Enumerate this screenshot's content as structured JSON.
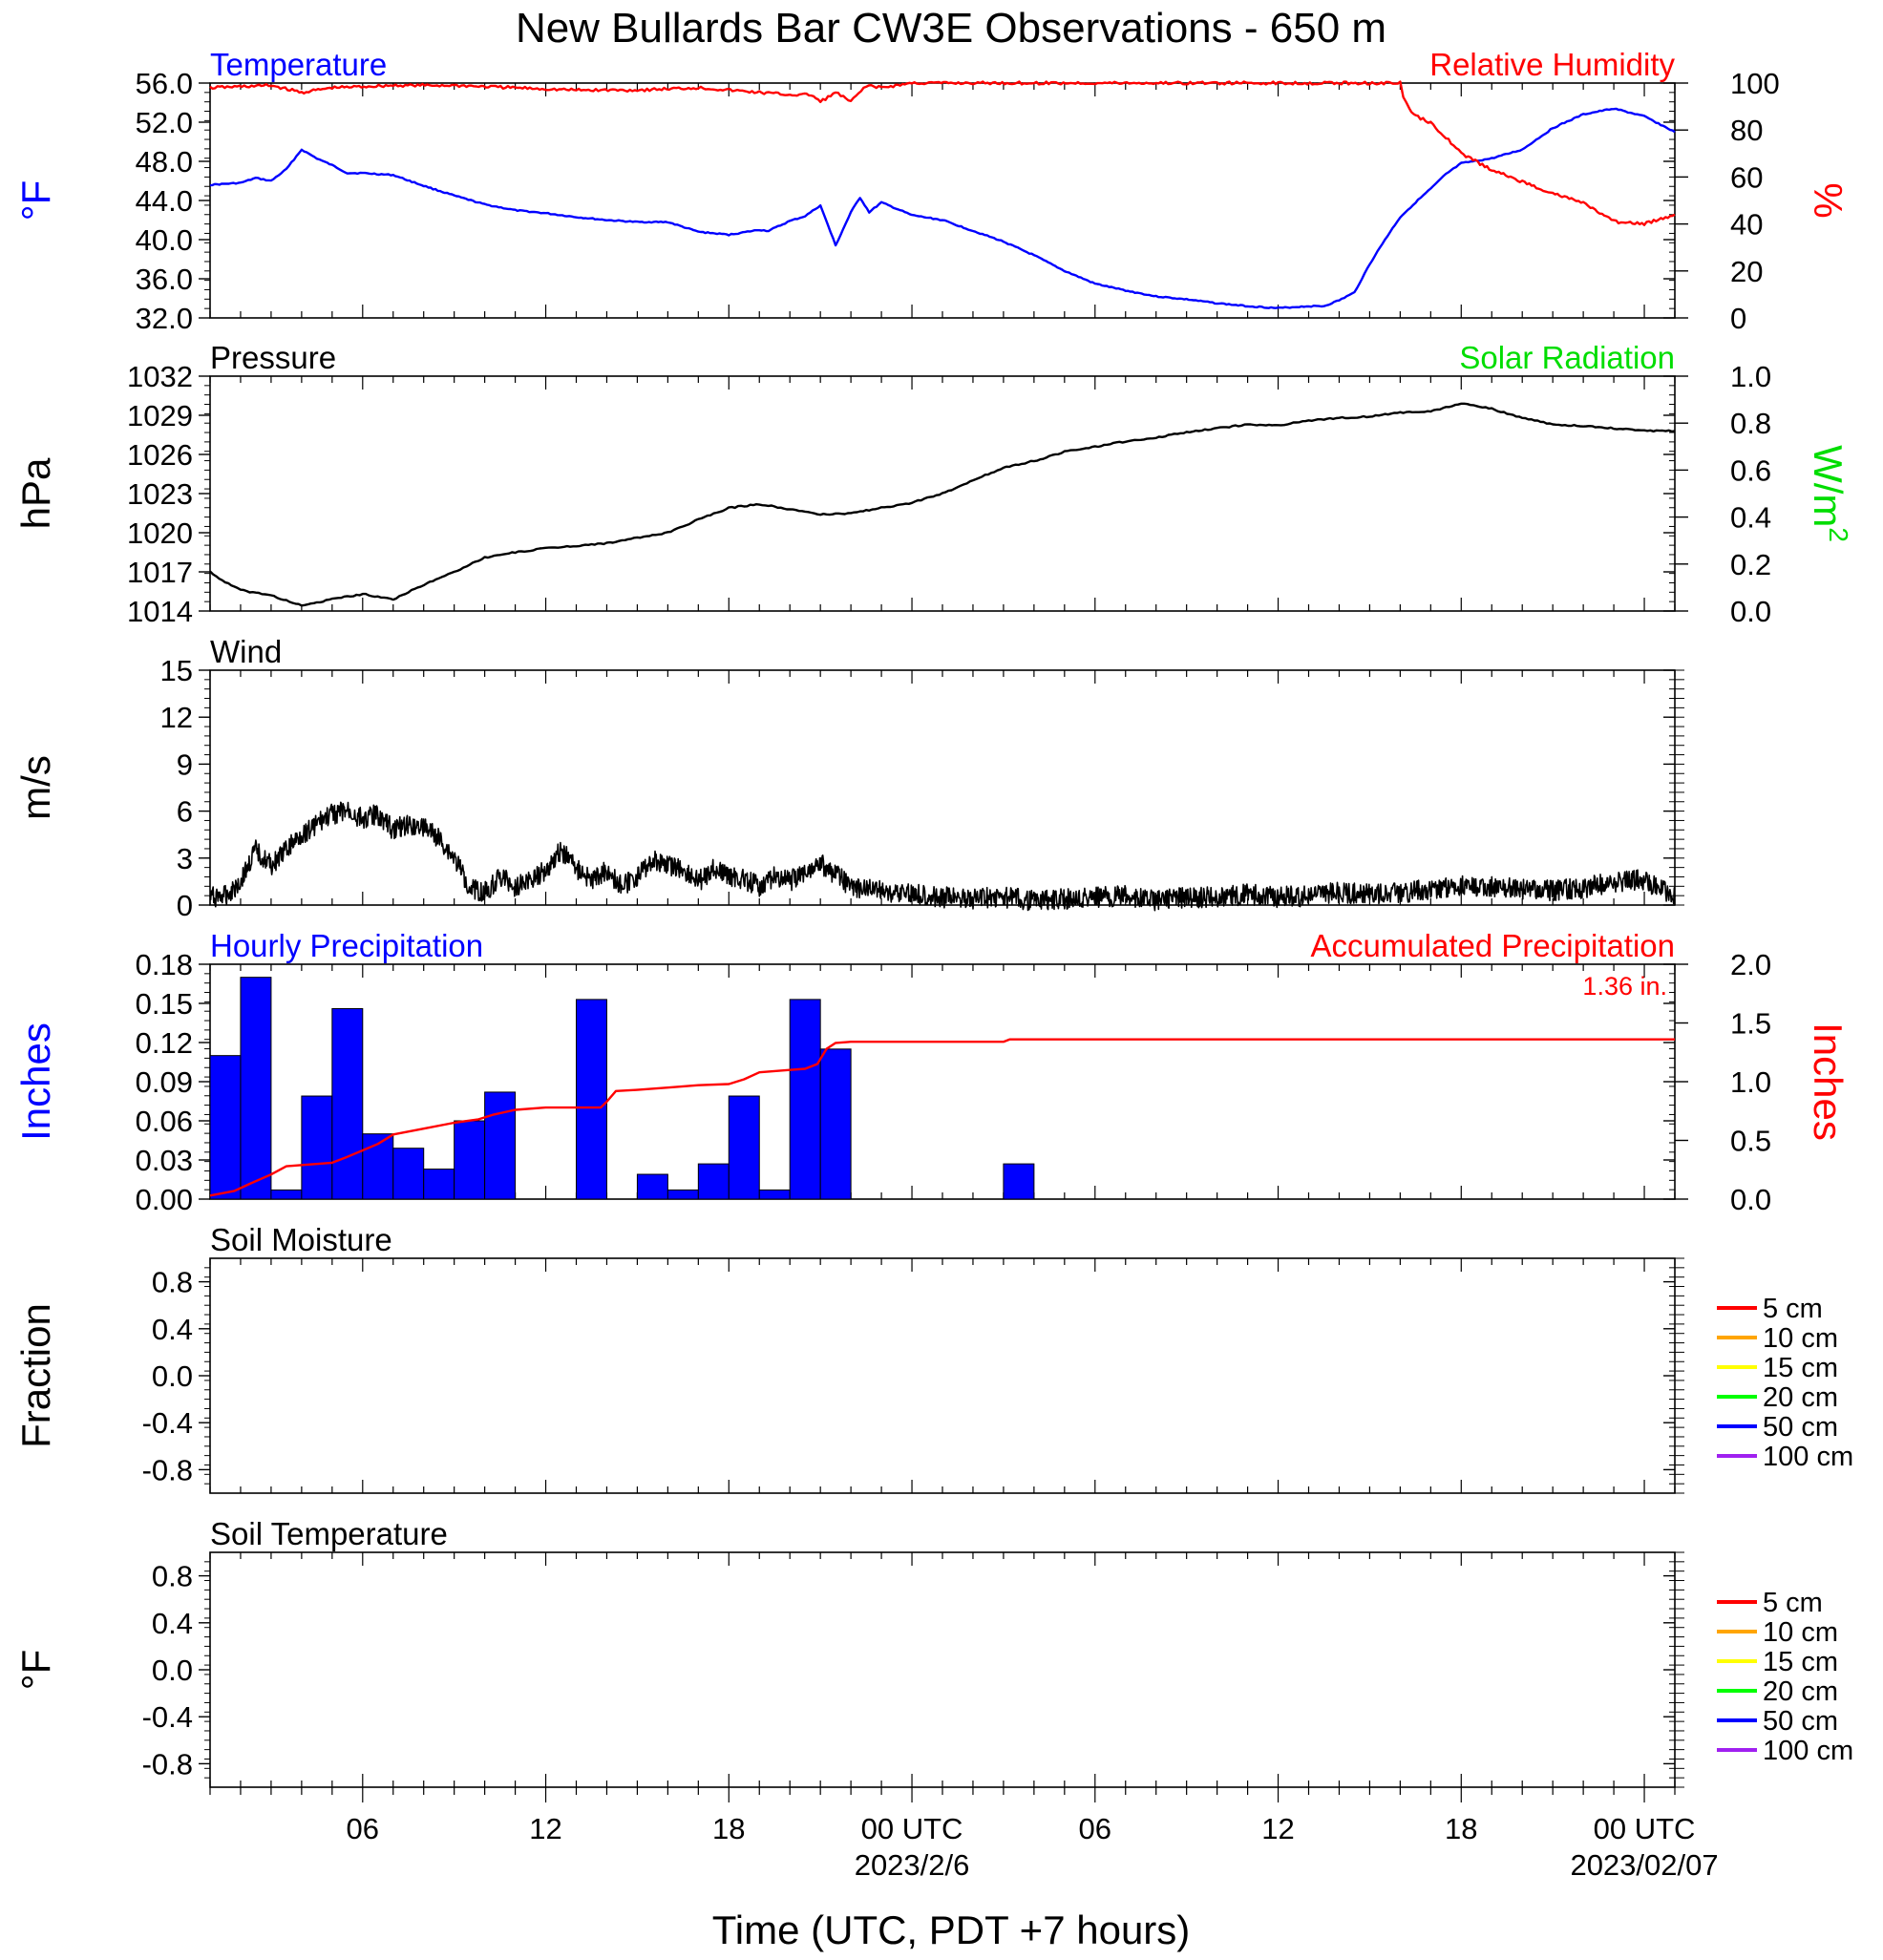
{
  "page": {
    "title": "New Bullards Bar CW3E Observations - 650 m",
    "xlabel": "Time (UTC, PDT +7 hours)",
    "colors": {
      "temperature": "#0000ff",
      "humidity": "#ff0000",
      "pressure": "#000000",
      "solar": "#00dd00",
      "wind": "#000000",
      "wind_barb": "#ff0000",
      "precip_bars": "#0000ff",
      "precip_accum": "#ff0000"
    }
  },
  "time_axis": {
    "start_hour": 0,
    "end_hour": 48,
    "tick_labels": [
      {
        "hour": 5,
        "label": "06",
        "date": ""
      },
      {
        "hour": 11,
        "label": "12",
        "date": ""
      },
      {
        "hour": 17,
        "label": "18",
        "date": ""
      },
      {
        "hour": 23,
        "label": "00 UTC",
        "date": "2023/2/6"
      },
      {
        "hour": 29,
        "label": "06",
        "date": ""
      },
      {
        "hour": 35,
        "label": "12",
        "date": ""
      },
      {
        "hour": 41,
        "label": "18",
        "date": ""
      },
      {
        "hour": 47,
        "label": "00 UTC",
        "date": "2023/02/07"
      }
    ]
  },
  "chart_data": [
    {
      "id": "temp_rh",
      "type": "line",
      "title_left": "Temperature",
      "title_right": "Relative Humidity",
      "ylabel_left": "°F",
      "ylabel_right": "%",
      "ylim_left": [
        32,
        56
      ],
      "yticks_left": [
        "32.0",
        "36.0",
        "40.0",
        "44.0",
        "48.0",
        "52.0",
        "56.0"
      ],
      "ylim_right": [
        0,
        100
      ],
      "yticks_right": [
        "0",
        "20",
        "40",
        "60",
        "80",
        "100"
      ],
      "series": [
        {
          "name": "Temperature",
          "axis": "left",
          "color": "#0000ff",
          "x": [
            0,
            1,
            1.5,
            2,
            2.5,
            3,
            3.5,
            4,
            4.5,
            5,
            6,
            7,
            8,
            9,
            10,
            11,
            12,
            13,
            14,
            15,
            16,
            17,
            18,
            18.3,
            19,
            19.5,
            20,
            20.5,
            21,
            21.3,
            21.6,
            22,
            23,
            24,
            25,
            26,
            27,
            28,
            29,
            30,
            31,
            32,
            33,
            34,
            35,
            36,
            36.5,
            37,
            37.5,
            38,
            38.5,
            39,
            39.5,
            40,
            40.5,
            41,
            42,
            43,
            44,
            45,
            46,
            47,
            48
          ],
          "y": [
            45.6,
            45.8,
            46.3,
            46.0,
            47.2,
            49.2,
            48.3,
            47.6,
            46.8,
            46.8,
            46.6,
            45.5,
            44.5,
            43.6,
            43.0,
            42.7,
            42.3,
            42.0,
            41.8,
            41.8,
            40.8,
            40.5,
            41.0,
            40.9,
            41.9,
            42.4,
            43.5,
            39.4,
            42.8,
            44.3,
            42.8,
            43.8,
            42.5,
            42.0,
            40.9,
            39.8,
            38.4,
            36.8,
            35.5,
            34.8,
            34.2,
            33.9,
            33.5,
            33.2,
            33.0,
            33.2,
            33.2,
            33.8,
            34.6,
            37.5,
            40.0,
            42.3,
            43.8,
            45.2,
            46.7,
            47.8,
            48.3,
            49.2,
            51.4,
            52.8,
            53.4,
            52.6,
            51.0
          ]
        },
        {
          "name": "Relative Humidity",
          "axis": "right",
          "color": "#ff0000",
          "x": [
            0,
            2,
            3,
            4,
            6,
            8,
            10,
            12,
            14,
            16,
            18,
            19,
            19.7,
            20,
            20.5,
            21,
            21.5,
            22,
            23,
            25,
            27,
            29,
            31,
            33,
            35,
            37,
            38,
            39,
            39.1,
            39.3,
            39.5,
            40,
            40.5,
            41,
            42,
            43,
            44,
            45,
            46,
            47,
            48
          ],
          "y": [
            98,
            99,
            96,
            98,
            99,
            99,
            98,
            97,
            97,
            98,
            96,
            95,
            95,
            92,
            96,
            92,
            99,
            98,
            100,
            100,
            100,
            100,
            100,
            100,
            100,
            100,
            100,
            100,
            94,
            89,
            86,
            83,
            77,
            70,
            63,
            58,
            53,
            49,
            41,
            40,
            44
          ]
        }
      ]
    },
    {
      "id": "pressure_solar",
      "type": "line",
      "title_left": "Pressure",
      "title_right": "Solar Radiation",
      "ylabel_left": "hPa",
      "ylabel_right": "W/m2",
      "ylim_left": [
        1014,
        1032
      ],
      "yticks_left": [
        "1014",
        "1017",
        "1020",
        "1023",
        "1026",
        "1029",
        "1032"
      ],
      "ylim_right": [
        0,
        1
      ],
      "yticks_right": [
        "0.0",
        "0.2",
        "0.4",
        "0.6",
        "0.8",
        "1.0"
      ],
      "series": [
        {
          "name": "Pressure",
          "axis": "left",
          "color": "#000000",
          "x": [
            0,
            0.5,
            1,
            2,
            3,
            4,
            5,
            6,
            7,
            8,
            9,
            10,
            11,
            12,
            13,
            14,
            15,
            16,
            17,
            18,
            19,
            20,
            21,
            22,
            23,
            24,
            25,
            26,
            27,
            28,
            29,
            30,
            31,
            32,
            33,
            34,
            35,
            36,
            37,
            38,
            39,
            40,
            41,
            42,
            43,
            44,
            45,
            46,
            47,
            48
          ],
          "y": [
            1017.0,
            1016.2,
            1015.6,
            1015.2,
            1014.4,
            1014.9,
            1015.3,
            1014.9,
            1016.0,
            1017.0,
            1018.1,
            1018.5,
            1018.8,
            1019.0,
            1019.2,
            1019.6,
            1020.0,
            1021.0,
            1021.9,
            1022.2,
            1021.8,
            1021.4,
            1021.5,
            1021.9,
            1022.3,
            1023.0,
            1024.0,
            1025.0,
            1025.5,
            1026.2,
            1026.6,
            1027.0,
            1027.3,
            1027.7,
            1028.0,
            1028.3,
            1028.2,
            1028.6,
            1028.8,
            1028.9,
            1029.2,
            1029.3,
            1029.9,
            1029.5,
            1028.8,
            1028.3,
            1028.2,
            1028.0,
            1027.8,
            1027.8
          ]
        }
      ]
    },
    {
      "id": "wind",
      "type": "line",
      "title_left": "Wind",
      "ylabel_left": "m/s",
      "ylim_left": [
        0,
        15
      ],
      "yticks_left": [
        "0",
        "3",
        "6",
        "9",
        "12",
        "15"
      ],
      "series": [
        {
          "name": "Wind",
          "axis": "left",
          "color": "#000000",
          "x": [
            0,
            0.5,
            1,
            1.5,
            2,
            2.5,
            3,
            3.5,
            4,
            4.5,
            5,
            5.5,
            6,
            6.5,
            7,
            7.5,
            8,
            8.5,
            9,
            9.5,
            10,
            10.5,
            11,
            11.5,
            12,
            12.5,
            13,
            13.5,
            14,
            14.5,
            15,
            15.5,
            16,
            16.5,
            17,
            17.5,
            18,
            18.5,
            19,
            19.5,
            20,
            21,
            22,
            23,
            24,
            25,
            26,
            27,
            28,
            29,
            30,
            31,
            32,
            33,
            34,
            35,
            36,
            37,
            38,
            39,
            40,
            41,
            42,
            43,
            44,
            45,
            46,
            47,
            48
          ],
          "y": [
            0.5,
            0.6,
            1.5,
            3.5,
            2.5,
            3.5,
            4.5,
            5.2,
            5.8,
            6.0,
            5.5,
            5.8,
            4.8,
            5.2,
            5.0,
            4.2,
            3.0,
            1.2,
            0.8,
            1.8,
            1.2,
            1.6,
            2.2,
            3.5,
            2.4,
            1.5,
            2.2,
            1.2,
            1.8,
            2.8,
            2.6,
            2.2,
            1.5,
            2.3,
            1.8,
            1.6,
            1.2,
            1.8,
            1.5,
            2.2,
            2.7,
            1.2,
            0.9,
            0.7,
            0.5,
            0.4,
            0.5,
            0.3,
            0.4,
            0.5,
            0.6,
            0.3,
            0.5,
            0.5,
            0.7,
            0.5,
            0.6,
            0.8,
            0.7,
            0.8,
            1.0,
            1.2,
            1.2,
            1.0,
            0.9,
            1.1,
            1.5,
            1.6,
            0.5
          ]
        }
      ]
    },
    {
      "id": "precip",
      "type": "bar",
      "title_left": "Hourly Precipitation",
      "title_right": "Accumulated Precipitation",
      "annotation": "1.36 in.",
      "ylabel_left": "Inches",
      "ylabel_right": "Inches",
      "ylim_left": [
        0,
        0.18
      ],
      "yticks_left": [
        "0.00",
        "0.03",
        "0.06",
        "0.09",
        "0.12",
        "0.15",
        "0.18"
      ],
      "ylim_right": [
        0,
        2
      ],
      "yticks_right": [
        "0.0",
        "0.5",
        "1.0",
        "1.5",
        "2.0"
      ],
      "series": [
        {
          "name": "Hourly Precipitation",
          "axis": "left",
          "color": "#0000ff",
          "hour_start": [
            0,
            1,
            2,
            3,
            4,
            5,
            6,
            7,
            8,
            9,
            10,
            12,
            14,
            15,
            16,
            17,
            18,
            19,
            20,
            26
          ],
          "values": [
            0.11,
            0.17,
            0.007,
            0.079,
            0.146,
            0.05,
            0.039,
            0.023,
            0.06,
            0.082,
            0.0,
            0.153,
            0.019,
            0.007,
            0.027,
            0.079,
            0.007,
            0.153,
            0.115,
            0.027
          ]
        },
        {
          "name": "Accumulated Precipitation",
          "axis": "right",
          "color": "#ff0000",
          "x": [
            0,
            0.8,
            1.3,
            2,
            2.5,
            4,
            4.5,
            5.5,
            6,
            7,
            8,
            8.8,
            9.3,
            10,
            11,
            12,
            12.8,
            13,
            13.3,
            14,
            15,
            16,
            17,
            17.5,
            18,
            19,
            19.5,
            19.9,
            20.2,
            20.5,
            21,
            26,
            26.2,
            30,
            48
          ],
          "y": [
            0.03,
            0.07,
            0.13,
            0.21,
            0.28,
            0.31,
            0.36,
            0.47,
            0.55,
            0.6,
            0.65,
            0.68,
            0.72,
            0.76,
            0.78,
            0.78,
            0.78,
            0.83,
            0.92,
            0.93,
            0.95,
            0.97,
            0.98,
            1.02,
            1.08,
            1.1,
            1.11,
            1.15,
            1.28,
            1.33,
            1.34,
            1.34,
            1.36,
            1.36,
            1.36
          ]
        }
      ]
    },
    {
      "id": "soil_moisture",
      "type": "line",
      "title_left": "Soil Moisture",
      "ylabel_left": "Fraction",
      "ylim_left": [
        -1,
        1
      ],
      "yticks_left": [
        "-0.8",
        "-0.4",
        "0.0",
        "0.4",
        "0.8"
      ],
      "legend": [
        {
          "name": "5 cm",
          "color": "#ff0000"
        },
        {
          "name": "10 cm",
          "color": "#ffa500"
        },
        {
          "name": "15 cm",
          "color": "#ffff00"
        },
        {
          "name": "20 cm",
          "color": "#00ff00"
        },
        {
          "name": "50 cm",
          "color": "#0000ff"
        },
        {
          "name": "100 cm",
          "color": "#a020f0"
        }
      ],
      "series": []
    },
    {
      "id": "soil_temp",
      "type": "line",
      "title_left": "Soil Temperature",
      "ylabel_left": "°F",
      "ylim_left": [
        -1,
        1
      ],
      "yticks_left": [
        "-0.8",
        "-0.4",
        "0.0",
        "0.4",
        "0.8"
      ],
      "legend": [
        {
          "name": "5 cm",
          "color": "#ff0000"
        },
        {
          "name": "10 cm",
          "color": "#ffa500"
        },
        {
          "name": "15 cm",
          "color": "#ffff00"
        },
        {
          "name": "20 cm",
          "color": "#00ff00"
        },
        {
          "name": "50 cm",
          "color": "#0000ff"
        },
        {
          "name": "100 cm",
          "color": "#a020f0"
        }
      ],
      "series": []
    }
  ]
}
